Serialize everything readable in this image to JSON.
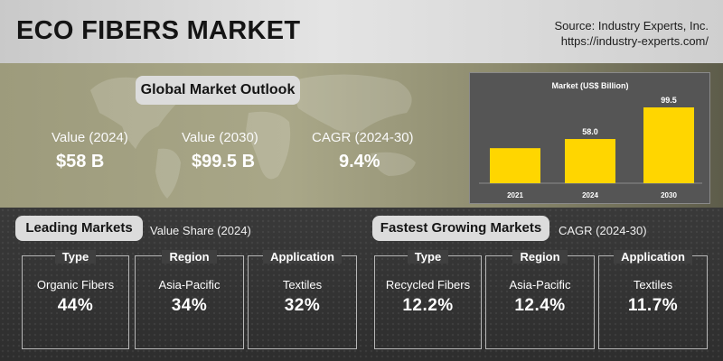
{
  "header": {
    "title": "ECO FIBERS MARKET",
    "source_line1": "Source: Industry Experts, Inc.",
    "source_line2": "https://industry-experts.com/"
  },
  "outlook": {
    "heading": "Global Market Outlook",
    "kpis": [
      {
        "label": "Value (2024)",
        "value": "$58 B"
      },
      {
        "label": "Value (2030)",
        "value": "$99.5 B"
      },
      {
        "label": "CAGR (2024-30)",
        "value": "9.4%"
      }
    ]
  },
  "chart_data": {
    "type": "bar",
    "title": "Market  (US$ Billion)",
    "categories": [
      "2021",
      "2024",
      "2030"
    ],
    "values": [
      null,
      58.0,
      99.5
    ],
    "value_labels": [
      "",
      "58.0",
      "99.5"
    ],
    "estimated_values": [
      46,
      58.0,
      99.5
    ],
    "bar_color": "#ffd600",
    "ylim": [
      0,
      110
    ],
    "grid": false
  },
  "leading": {
    "heading": "Leading Markets",
    "note": "Value Share (2024)",
    "cards": [
      {
        "head": "Type",
        "name": "Organic Fibers",
        "value": "44%"
      },
      {
        "head": "Region",
        "name": "Asia-Pacific",
        "value": "34%"
      },
      {
        "head": "Application",
        "name": "Textiles",
        "value": "32%"
      }
    ]
  },
  "fastest": {
    "heading": "Fastest Growing Markets",
    "note": "CAGR (2024-30)",
    "cards": [
      {
        "head": "Type",
        "name": "Recycled Fibers",
        "value": "12.2%"
      },
      {
        "head": "Region",
        "name": "Asia-Pacific",
        "value": "12.4%"
      },
      {
        "head": "Application",
        "name": "Textiles",
        "value": "11.7%"
      }
    ]
  }
}
